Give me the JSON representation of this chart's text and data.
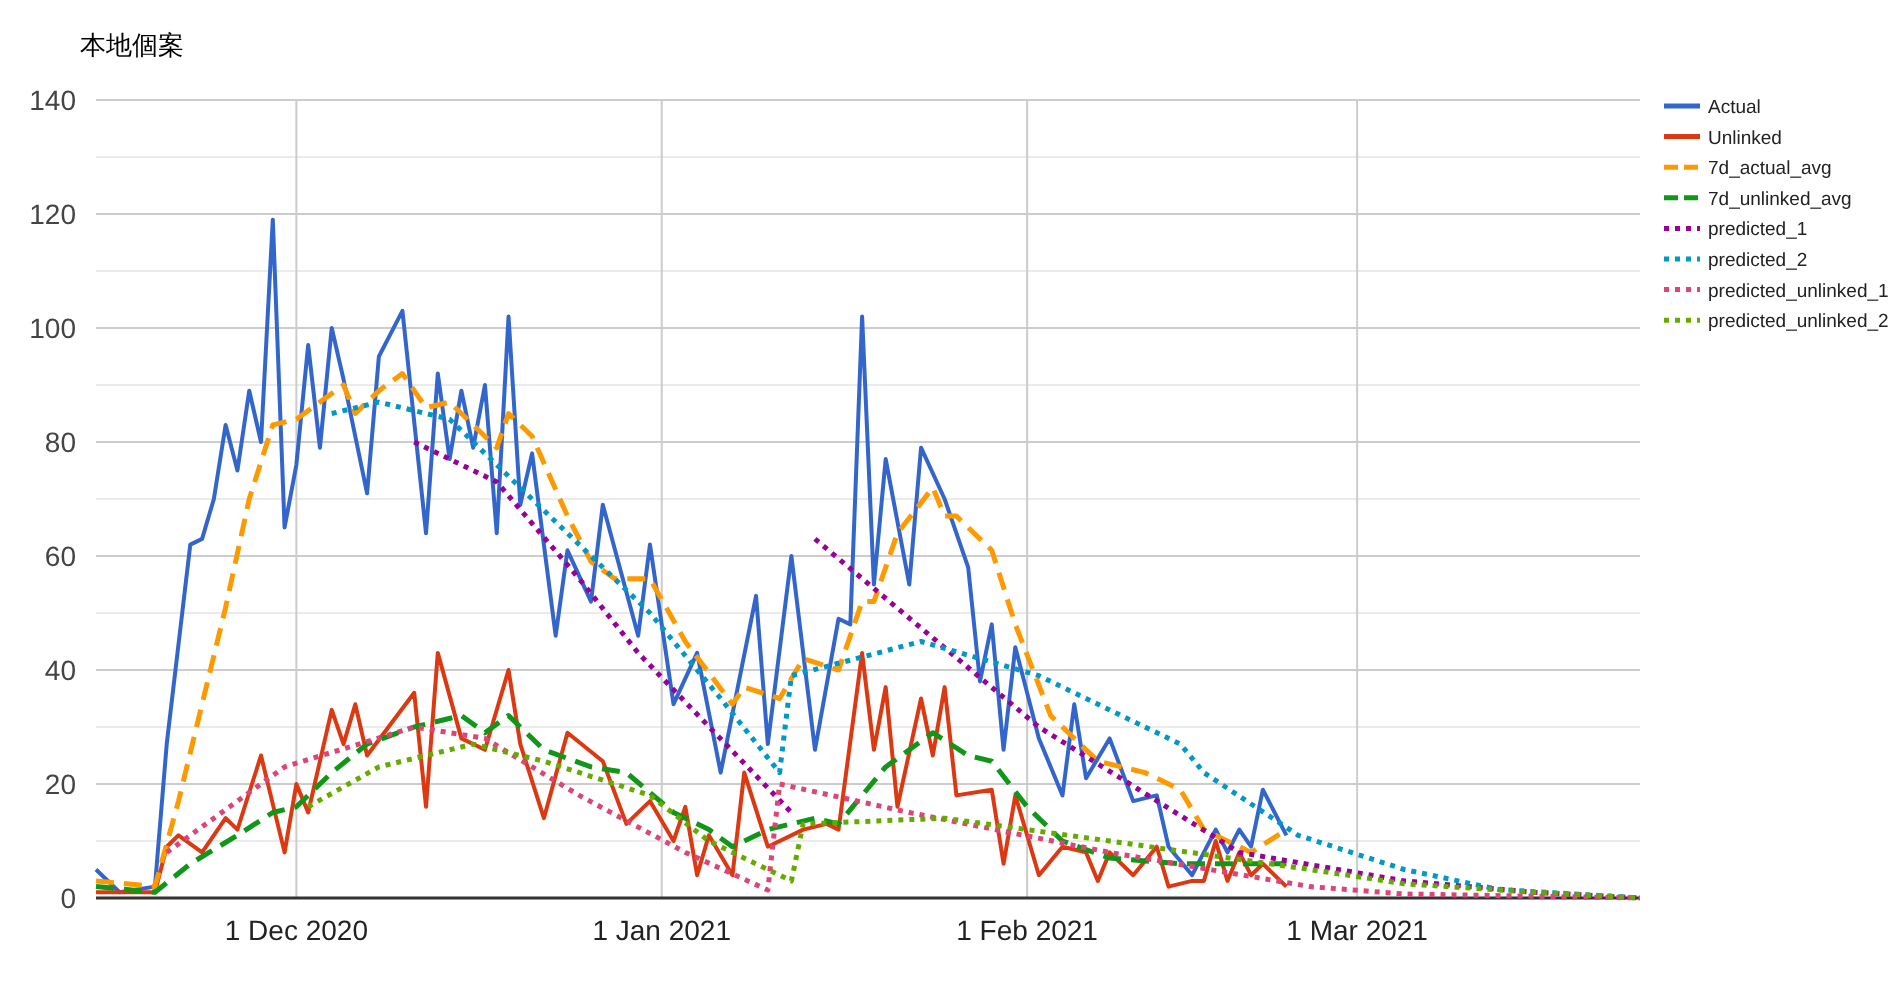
{
  "chart_data": {
    "type": "line",
    "title": "本地個案",
    "xlim": [
      "2020-11-14",
      "2021-03-25"
    ],
    "xticks": [
      {
        "value": "2020-12-01",
        "label": "1 Dec 2020"
      },
      {
        "value": "2021-01-01",
        "label": "1 Jan 2021"
      },
      {
        "value": "2021-02-01",
        "label": "1 Feb 2021"
      },
      {
        "value": "2021-03-01",
        "label": "1 Mar 2021"
      }
    ],
    "ylim": [
      0,
      140
    ],
    "yticks": [
      0,
      {
        "value": 10,
        "label": null
      },
      20,
      {
        "value": 30,
        "label": null
      },
      40,
      {
        "value": 50,
        "label": null
      },
      60,
      {
        "value": 70,
        "label": null
      },
      80,
      {
        "value": 90,
        "label": null
      },
      100,
      {
        "value": 110,
        "label": null
      },
      120,
      {
        "value": 130,
        "label": null
      },
      140
    ],
    "grid": true,
    "legend": "right",
    "series": [
      {
        "name": "Actual",
        "color": "#3366cc",
        "line_style": "solid",
        "x": [
          "2020-11-14",
          "2020-11-16",
          "2020-11-19",
          "2020-11-20",
          "2020-11-22",
          "2020-11-23",
          "2020-11-24",
          "2020-11-25",
          "2020-11-26",
          "2020-11-27",
          "2020-11-28",
          "2020-11-29",
          "2020-11-30",
          "2020-12-01",
          "2020-12-02",
          "2020-12-03",
          "2020-12-04",
          "2020-12-05",
          "2020-12-07",
          "2020-12-08",
          "2020-12-09",
          "2020-12-10",
          "2020-12-12",
          "2020-12-13",
          "2020-12-14",
          "2020-12-15",
          "2020-12-16",
          "2020-12-17",
          "2020-12-18",
          "2020-12-19",
          "2020-12-20",
          "2020-12-21",
          "2020-12-23",
          "2020-12-24",
          "2020-12-26",
          "2020-12-27",
          "2020-12-30",
          "2020-12-31",
          "2021-01-02",
          "2021-01-04",
          "2021-01-06",
          "2021-01-09",
          "2021-01-10",
          "2021-01-12",
          "2021-01-14",
          "2021-01-16",
          "2021-01-17",
          "2021-01-18",
          "2021-01-19",
          "2021-01-20",
          "2021-01-22",
          "2021-01-23",
          "2021-01-25",
          "2021-01-27",
          "2021-01-28",
          "2021-01-29",
          "2021-01-30",
          "2021-01-31",
          "2021-02-02",
          "2021-02-04",
          "2021-02-05",
          "2021-02-06",
          "2021-02-08",
          "2021-02-10",
          "2021-02-12",
          "2021-02-13",
          "2021-02-15",
          "2021-02-17",
          "2021-02-18",
          "2021-02-19",
          "2021-02-20",
          "2021-02-21",
          "2021-02-23"
        ],
        "values": [
          5,
          1,
          2,
          27,
          62,
          63,
          70,
          83,
          75,
          89,
          80,
          119,
          65,
          76,
          97,
          79,
          100,
          91,
          71,
          95,
          99,
          103,
          64,
          92,
          77,
          89,
          79,
          90,
          64,
          102,
          69,
          78,
          46,
          61,
          52,
          69,
          46,
          62,
          34,
          43,
          22,
          53,
          27,
          60,
          26,
          49,
          48,
          102,
          55,
          77,
          55,
          79,
          70,
          58,
          38,
          48,
          26,
          44,
          28,
          18,
          34,
          21,
          28,
          17,
          18,
          9,
          4,
          12,
          8,
          12,
          9,
          19,
          11
        ]
      },
      {
        "name": "Unlinked",
        "color": "#dc3912",
        "line_style": "solid",
        "x": [
          "2020-11-14",
          "2020-11-18",
          "2020-11-19",
          "2020-11-20",
          "2020-11-21",
          "2020-11-23",
          "2020-11-25",
          "2020-11-26",
          "2020-11-28",
          "2020-11-30",
          "2020-12-01",
          "2020-12-02",
          "2020-12-04",
          "2020-12-05",
          "2020-12-06",
          "2020-12-07",
          "2020-12-11",
          "2020-12-12",
          "2020-12-13",
          "2020-12-15",
          "2020-12-17",
          "2020-12-19",
          "2020-12-20",
          "2020-12-22",
          "2020-12-24",
          "2020-12-27",
          "2020-12-29",
          "2020-12-31",
          "2021-01-02",
          "2021-01-03",
          "2021-01-04",
          "2021-01-05",
          "2021-01-07",
          "2021-01-08",
          "2021-01-10",
          "2021-01-13",
          "2021-01-15",
          "2021-01-16",
          "2021-01-18",
          "2021-01-19",
          "2021-01-20",
          "2021-01-21",
          "2021-01-23",
          "2021-01-24",
          "2021-01-25",
          "2021-01-26",
          "2021-01-29",
          "2021-01-30",
          "2021-01-31",
          "2021-02-02",
          "2021-02-04",
          "2021-02-06",
          "2021-02-07",
          "2021-02-08",
          "2021-02-10",
          "2021-02-12",
          "2021-02-13",
          "2021-02-15",
          "2021-02-16",
          "2021-02-17",
          "2021-02-18",
          "2021-02-19",
          "2021-02-20",
          "2021-02-21",
          "2021-02-23"
        ],
        "values": [
          1,
          1,
          1,
          9,
          11,
          8,
          14,
          12,
          25,
          8,
          20,
          15,
          33,
          27,
          34,
          25,
          36,
          16,
          43,
          28,
          26,
          40,
          27,
          14,
          29,
          24,
          13,
          17,
          10,
          16,
          4,
          11,
          4,
          22,
          9,
          12,
          13,
          12,
          43,
          26,
          37,
          16,
          35,
          25,
          37,
          18,
          19,
          6,
          18,
          4,
          9,
          8,
          3,
          8,
          4,
          9,
          2,
          3,
          3,
          10,
          3,
          8,
          4,
          6,
          2
        ]
      },
      {
        "name": "7d_actual_avg",
        "color": "#ff9900",
        "line_style": "dashed",
        "x": [
          "2020-11-14",
          "2020-11-19",
          "2020-11-21",
          "2020-11-25",
          "2020-11-27",
          "2020-11-29",
          "2020-12-01",
          "2020-12-03",
          "2020-12-05",
          "2020-12-06",
          "2020-12-08",
          "2020-12-10",
          "2020-12-12",
          "2020-12-14",
          "2020-12-18",
          "2020-12-19",
          "2020-12-21",
          "2020-12-24",
          "2020-12-26",
          "2020-12-28",
          "2020-12-31",
          "2021-01-03",
          "2021-01-07",
          "2021-01-08",
          "2021-01-11",
          "2021-01-13",
          "2021-01-16",
          "2021-01-18",
          "2021-01-19",
          "2021-01-21",
          "2021-01-24",
          "2021-01-25",
          "2021-01-26",
          "2021-01-29",
          "2021-01-31",
          "2021-02-03",
          "2021-02-07",
          "2021-02-11",
          "2021-02-14",
          "2021-02-16",
          "2021-02-20",
          "2021-02-23"
        ],
        "values": [
          3,
          2,
          17,
          51,
          70,
          83,
          84,
          87,
          90,
          85,
          89,
          92,
          86,
          87,
          79,
          85,
          81,
          67,
          59,
          56,
          56,
          45,
          34,
          37,
          35,
          42,
          40,
          52,
          52,
          64,
          72,
          67,
          67,
          61,
          48,
          32,
          24,
          22,
          19,
          12,
          8,
          12
        ]
      },
      {
        "name": "7d_unlinked_avg",
        "color": "#109618",
        "line_style": "dashed",
        "x": [
          "2020-11-14",
          "2020-11-19",
          "2020-11-22",
          "2020-11-26",
          "2020-11-29",
          "2020-12-01",
          "2020-12-04",
          "2020-12-07",
          "2020-12-11",
          "2020-12-15",
          "2020-12-17",
          "2020-12-19",
          "2020-12-22",
          "2020-12-26",
          "2020-12-29",
          "2021-01-02",
          "2021-01-05",
          "2021-01-07",
          "2021-01-10",
          "2021-01-14",
          "2021-01-16",
          "2021-01-20",
          "2021-01-24",
          "2021-01-27",
          "2021-01-29",
          "2021-02-01",
          "2021-02-04",
          "2021-02-08",
          "2021-02-14",
          "2021-02-18",
          "2021-02-23"
        ],
        "values": [
          2,
          1,
          6,
          11,
          15,
          16,
          22,
          27,
          30,
          32,
          29,
          32,
          26,
          23,
          22,
          15,
          12,
          9,
          12,
          14,
          13,
          23,
          29,
          25,
          24,
          16,
          10,
          7,
          6,
          6,
          6
        ]
      },
      {
        "name": "predicted_1",
        "color": "#990099",
        "line_style": "dotted",
        "x": [
          "2020-12-11",
          "2020-12-18",
          "2020-12-25",
          "2020-12-30",
          "2021-01-12",
          "2021-01-13",
          "2021-01-14",
          "2021-02-02",
          "2021-02-19",
          "2021-03-05",
          "2021-03-16",
          "2021-03-25"
        ],
        "values": [
          80,
          73,
          56,
          43,
          15,
          null,
          63,
          30,
          8,
          3,
          1,
          0
        ]
      },
      {
        "name": "predicted_2",
        "color": "#0099c6",
        "line_style": "dotted",
        "x": [
          "2020-12-04",
          "2020-12-08",
          "2020-12-14",
          "2020-12-20",
          "2020-12-25",
          "2020-12-31",
          "2021-01-06",
          "2021-01-11",
          "2021-01-12",
          "2021-01-23",
          "2021-02-02",
          "2021-02-14",
          "2021-02-16",
          "2021-02-24",
          "2021-03-05",
          "2021-03-13",
          "2021-03-25"
        ],
        "values": [
          85,
          87,
          84,
          72,
          62,
          50,
          35,
          22,
          39,
          45,
          39,
          27,
          22,
          11,
          5,
          1.5,
          0
        ]
      },
      {
        "name": "predicted_unlinked_1",
        "color": "#dd4477",
        "line_style": "dotted",
        "x": [
          "2020-11-20",
          "2020-11-30",
          "2020-12-11",
          "2020-12-17",
          "2020-12-25",
          "2021-01-03",
          "2021-01-10",
          "2021-01-11",
          "2021-01-22",
          "2021-02-08",
          "2021-02-25",
          "2021-03-05",
          "2021-03-25"
        ],
        "values": [
          8,
          23,
          30,
          28,
          18,
          8,
          1.4,
          20,
          15,
          8,
          2,
          0.7,
          0
        ]
      },
      {
        "name": "predicted_unlinked_2",
        "color": "#66aa00",
        "line_style": "dotted",
        "x": [
          "2020-12-02",
          "2020-12-08",
          "2020-12-16",
          "2020-12-22",
          "2020-12-31",
          "2021-01-05",
          "2021-01-12",
          "2021-01-13",
          "2021-01-25",
          "2021-02-08",
          "2021-02-25",
          "2021-03-05",
          "2021-03-16",
          "2021-03-25"
        ],
        "values": [
          16,
          23,
          27,
          24,
          18,
          10,
          3,
          13,
          14,
          10,
          5,
          2.5,
          1,
          0
        ]
      }
    ]
  }
}
